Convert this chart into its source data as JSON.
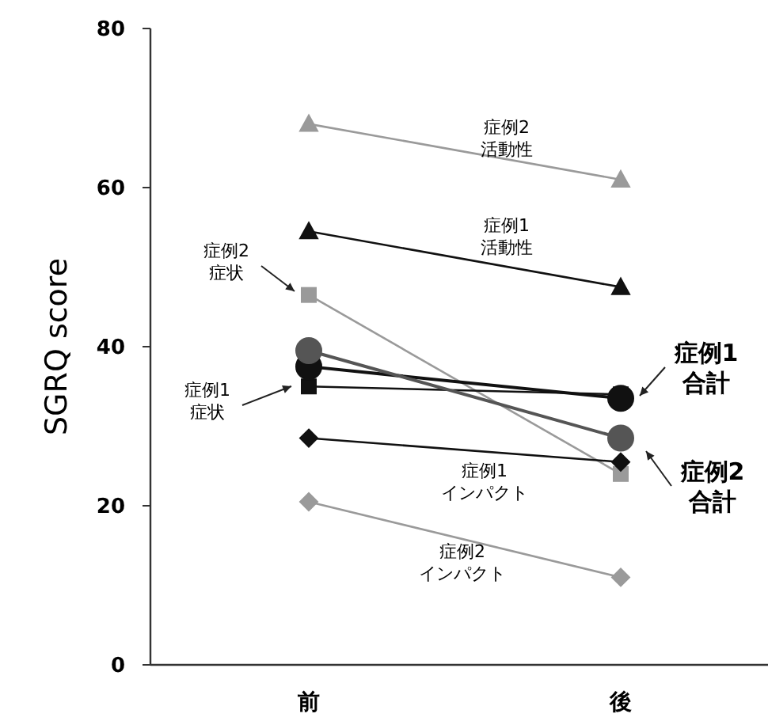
{
  "chart_data": {
    "type": "line",
    "ylabel": "SGRQ score",
    "categories": [
      "前",
      "後"
    ],
    "ylim": [
      0,
      80
    ],
    "yticks": [
      0,
      20,
      40,
      60,
      80
    ],
    "grid": false,
    "series": [
      {
        "name": "症例2 活動性",
        "color": "#9a9a9a",
        "marker": "triangle",
        "values": [
          68,
          61
        ]
      },
      {
        "name": "症例1 活動性",
        "color": "#111111",
        "marker": "triangle",
        "values": [
          54.5,
          47.5
        ]
      },
      {
        "name": "症例2 症状",
        "color": "#9a9a9a",
        "marker": "square",
        "values": [
          46.5,
          24
        ]
      },
      {
        "name": "症例1 症状",
        "color": "#111111",
        "marker": "square",
        "values": [
          35,
          34
        ]
      },
      {
        "name": "症例1 合計",
        "color": "#111111",
        "marker": "circle",
        "values": [
          37.5,
          33.5
        ]
      },
      {
        "name": "症例2 合計",
        "color": "#555555",
        "marker": "circle",
        "values": [
          39.5,
          28.5
        ]
      },
      {
        "name": "症例1 インパクト",
        "color": "#111111",
        "marker": "diamond",
        "values": [
          28.5,
          25.5
        ]
      },
      {
        "name": "症例2 インパクト",
        "color": "#9a9a9a",
        "marker": "diamond",
        "values": [
          20.5,
          11
        ]
      }
    ]
  }
}
